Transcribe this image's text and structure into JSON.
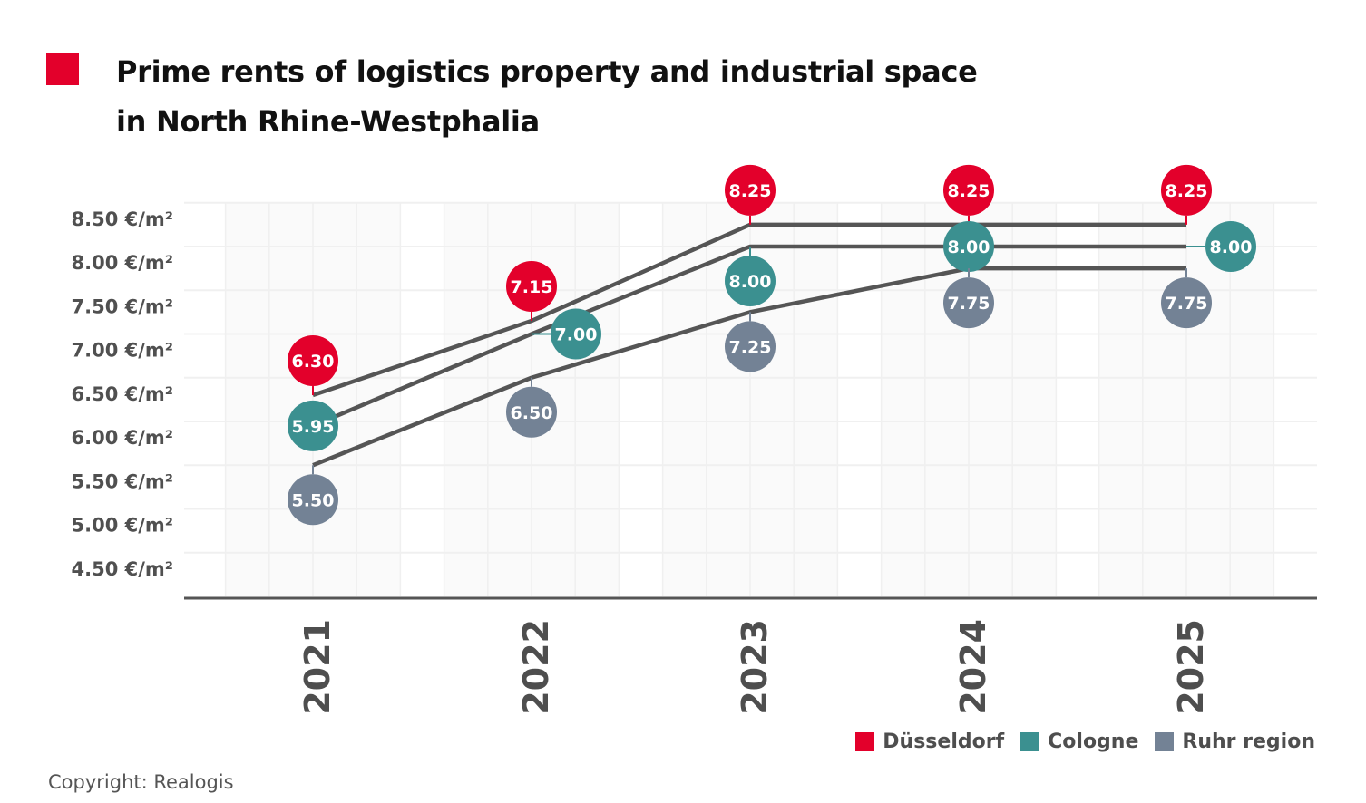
{
  "header": {
    "title_line1": "Prime rents of logistics property and industrial space",
    "title_line2": "in North Rhine-Westphalia",
    "accent_color": "#E3002B"
  },
  "chart_data": {
    "type": "line",
    "title": "Prime rents of logistics property and industrial space in North Rhine-Westphalia",
    "xlabel": "",
    "ylabel": "",
    "categories": [
      "2021",
      "2022",
      "2023",
      "2024",
      "2025"
    ],
    "y_ticks": [
      4.5,
      5.0,
      5.5,
      6.0,
      6.5,
      7.0,
      7.5,
      8.0,
      8.5
    ],
    "y_tick_labels": [
      "4.50 €/m²",
      "5.00 €/m²",
      "5.50 €/m²",
      "6.00 €/m²",
      "6.50 €/m²",
      "7.00 €/m²",
      "7.50 €/m²",
      "8.00 €/m²",
      "8.50 €/m²"
    ],
    "ylim": [
      4.0,
      8.5
    ],
    "grid": true,
    "legend_position": "bottom-right",
    "series": [
      {
        "name": "Düsseldorf",
        "color": "#E3002B",
        "values": [
          6.3,
          7.15,
          8.25,
          8.25,
          8.25
        ],
        "labels": [
          "6.30",
          "7.15",
          "8.25",
          "8.25",
          "8.25"
        ],
        "label_side": [
          "up",
          "up",
          "up",
          "up",
          "up"
        ]
      },
      {
        "name": "Cologne",
        "color": "#3B9090",
        "values": [
          5.95,
          7.0,
          8.0,
          8.0,
          8.0
        ],
        "labels": [
          "5.95",
          "7.00",
          "8.00",
          "8.00",
          "8.00"
        ],
        "label_side": [
          "on",
          "right",
          "down",
          "on",
          "right"
        ]
      },
      {
        "name": "Ruhr region",
        "color": "#738295",
        "values": [
          5.5,
          6.5,
          7.25,
          7.75,
          7.75
        ],
        "labels": [
          "5.50",
          "6.50",
          "7.25",
          "7.75",
          "7.75"
        ],
        "label_side": [
          "down",
          "down",
          "down",
          "down",
          "down"
        ]
      }
    ],
    "line_color": "#555555"
  },
  "legend": {
    "items": [
      {
        "label": "Düsseldorf",
        "color": "#E3002B"
      },
      {
        "label": "Cologne",
        "color": "#3B9090"
      },
      {
        "label": "Ruhr region",
        "color": "#738295"
      }
    ]
  },
  "footer": {
    "copyright": "Copyright: Realogis"
  }
}
